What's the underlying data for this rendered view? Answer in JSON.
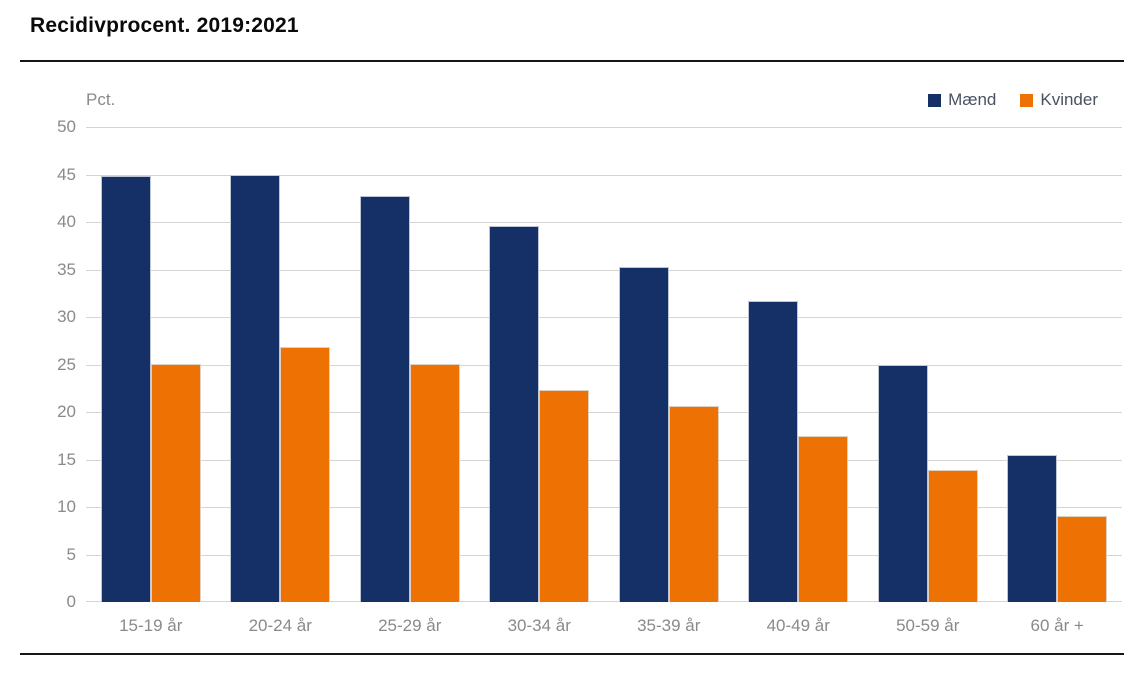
{
  "page": {
    "title": "Recidivprocent. 2019:2021"
  },
  "chart_data": {
    "type": "bar",
    "title": "Recidivprocent. 2019:2021",
    "unit_label": "Pct.",
    "categories": [
      "15-19 år",
      "20-24 år",
      "25-29 år",
      "30-34 år",
      "35-39 år",
      "40-49 år",
      "50-59 år",
      "60 år +"
    ],
    "series": [
      {
        "key": "maend",
        "name": "Mænd",
        "color": "#152f67",
        "values": [
          44.8,
          44.9,
          42.7,
          39.6,
          35.3,
          31.7,
          24.9,
          15.5
        ]
      },
      {
        "key": "kvinder",
        "name": "Kvinder",
        "color": "#ee7104",
        "values": [
          25.0,
          26.8,
          25.1,
          22.3,
          20.6,
          17.5,
          13.9,
          9.1
        ]
      }
    ],
    "ylim": [
      0,
      50
    ],
    "yticks": [
      0,
      5,
      10,
      15,
      20,
      25,
      30,
      35,
      40,
      45,
      50
    ],
    "grid": true,
    "legend_position": "top-right"
  },
  "colors": {
    "grid": "#d7d5cf",
    "axis_text": "#8a8a8a",
    "legend_text": "#4a5160",
    "rule": "#161616"
  }
}
